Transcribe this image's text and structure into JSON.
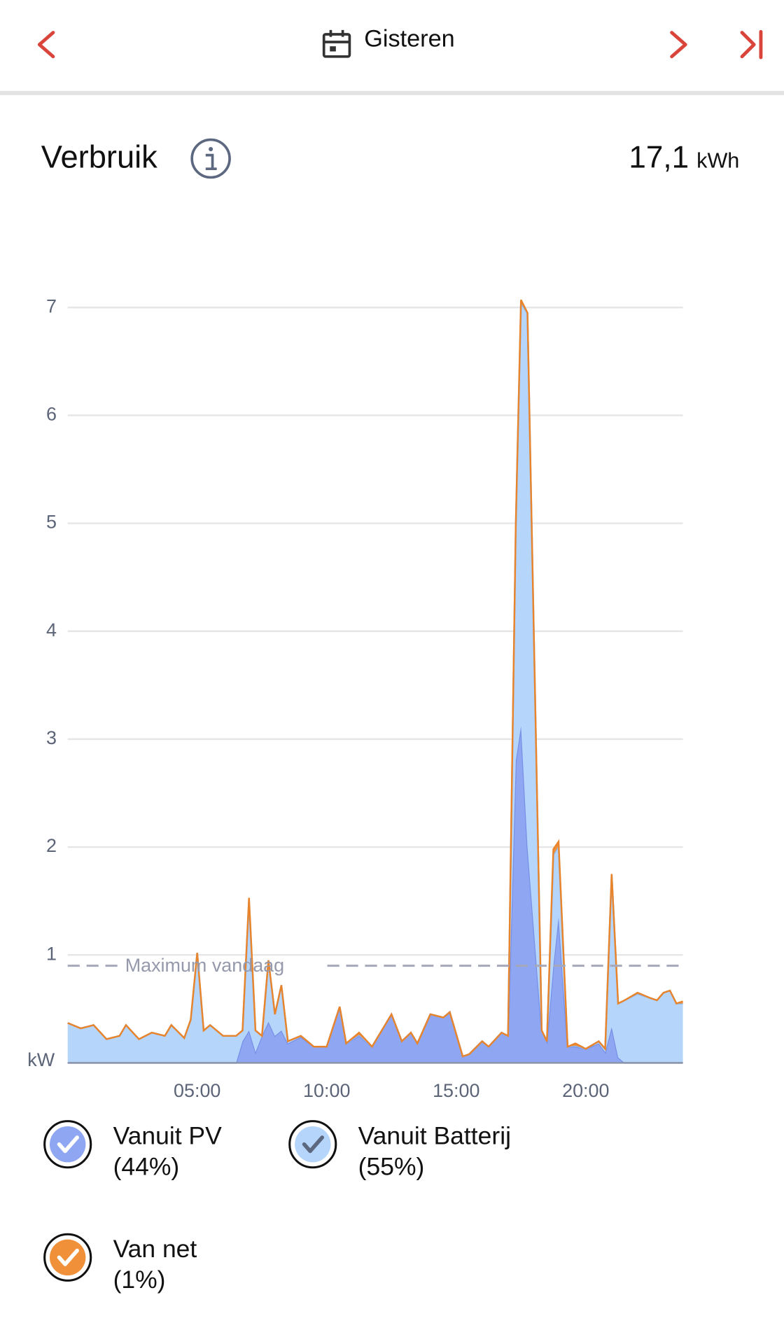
{
  "header": {
    "title": "Gisteren"
  },
  "summary": {
    "title": "Verbruik",
    "value": "17,1",
    "unit": "kWh"
  },
  "chart_data": {
    "type": "stacked-area",
    "ylabel": "kW",
    "x": [
      0,
      0.5,
      1,
      1.5,
      2,
      2.25,
      2.75,
      3.25,
      3.75,
      4,
      4.5,
      4.75,
      5,
      5.25,
      5.5,
      6,
      6.5,
      6.75,
      7,
      7.25,
      7.5,
      7.75,
      8,
      8.25,
      8.5,
      9,
      9.5,
      10,
      10.5,
      10.75,
      11.25,
      11.75,
      12.5,
      12.9,
      13.25,
      13.5,
      14,
      14.5,
      14.75,
      15.25,
      15.5,
      16,
      16.25,
      16.75,
      17,
      17.3,
      17.5,
      17.75,
      18.3,
      18.5,
      18.75,
      18.95,
      19.3,
      19.6,
      20,
      20.5,
      20.75,
      21,
      21.25,
      21.5,
      22,
      22.5,
      22.75,
      23,
      23.25,
      23.5,
      23.75
    ],
    "series": [
      {
        "name": "Vanuit PV",
        "share": 44,
        "share_label": "(44%)",
        "color": "#8fa6f2",
        "stroke": "#7690e6",
        "values": [
          0,
          0,
          0,
          0,
          0,
          0,
          0,
          0,
          0,
          0,
          0,
          0,
          0,
          0,
          0,
          0,
          0,
          0.2,
          0.3,
          0.1,
          0.25,
          0.38,
          0.25,
          0.3,
          0.18,
          0.24,
          0.15,
          0.15,
          0.52,
          0.18,
          0.25,
          0.15,
          0.45,
          0.2,
          0.28,
          0.18,
          0.45,
          0.42,
          0.47,
          0.06,
          0.08,
          0.2,
          0.15,
          0.28,
          0.25,
          2.8,
          3.12,
          2.0,
          0.3,
          0.2,
          0.9,
          1.35,
          0.15,
          0.15,
          0.13,
          0.18,
          0.1,
          0.33,
          0.05,
          0,
          0,
          0,
          0,
          0,
          0,
          0,
          0
        ]
      },
      {
        "name": "Vanuit Batterij",
        "share": 55,
        "share_label": "(55%)",
        "color": "#b6d5fb",
        "stroke": "#8fb5ef",
        "values": [
          0.37,
          0.32,
          0.35,
          0.22,
          0.25,
          0.35,
          0.22,
          0.28,
          0.25,
          0.35,
          0.23,
          0.4,
          1.02,
          0.3,
          0.35,
          0.25,
          0.25,
          0.1,
          1.2,
          0.2,
          0,
          0.57,
          0.2,
          0.42,
          0.02,
          0.01,
          0,
          0,
          0,
          0,
          0.01,
          0,
          0,
          0,
          0,
          0,
          0,
          0,
          0,
          0,
          0,
          0,
          0,
          0,
          0,
          2.2,
          3.92,
          4.95,
          0,
          0,
          1.03,
          0.66,
          0,
          0.01,
          0,
          0.02,
          0.03,
          1.42,
          0.5,
          0.58,
          0.64,
          0.6,
          0.58,
          0.65,
          0.67,
          0.55,
          0.55
        ]
      },
      {
        "name": "Van net",
        "share": 1,
        "share_label": "(1%)",
        "color": "#f0913a",
        "stroke": "#e8852c",
        "values": [
          0,
          0,
          0,
          0,
          0,
          0,
          0,
          0,
          0,
          0,
          0,
          0,
          0,
          0,
          0,
          0,
          0,
          0,
          0.03,
          0,
          0,
          0,
          0,
          0,
          0,
          0,
          0,
          0,
          0,
          0,
          0.02,
          0,
          0,
          0,
          0,
          0,
          0,
          0,
          0,
          0,
          0,
          0,
          0,
          0,
          0,
          0,
          0.03,
          0,
          0,
          0,
          0.05,
          0.04,
          0,
          0.02,
          0,
          0,
          0,
          0,
          0,
          0,
          0.01,
          0,
          0,
          0,
          0,
          0,
          0.02
        ]
      }
    ],
    "xlim": [
      0,
      23.75
    ],
    "xticks": [
      {
        "value": 5,
        "label": "05:00"
      },
      {
        "value": 10,
        "label": "10:00"
      },
      {
        "value": 15,
        "label": "15:00"
      },
      {
        "value": 20,
        "label": "20:00"
      }
    ],
    "ylim": [
      0,
      7.15
    ],
    "yticks": [
      1,
      2,
      3,
      4,
      5,
      6,
      7
    ],
    "grid": true,
    "annotations": [
      {
        "text": "Maximum vandaag",
        "y": 0.9
      }
    ]
  }
}
